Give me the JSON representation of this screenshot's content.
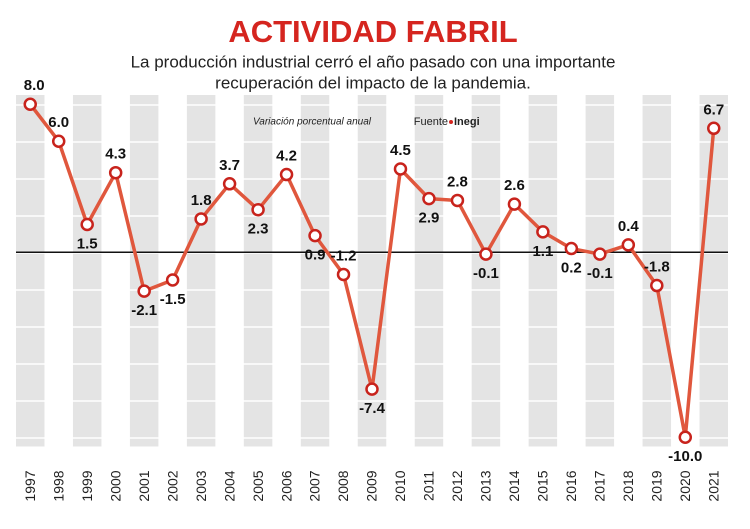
{
  "chart_data": {
    "type": "line",
    "title": "ACTIVIDAD FABRIL",
    "subtitle": [
      "La producción industrial cerró el año pasado con una importante",
      "recuperación del impacto de la pandemia."
    ],
    "y_label": "Variación porcentual anual",
    "source_label": "Fuente",
    "source": "Inegi",
    "categories": [
      "1997",
      "1998",
      "1999",
      "2000",
      "2001",
      "2002",
      "2003",
      "2004",
      "2005",
      "2006",
      "2007",
      "2008",
      "2009",
      "2010",
      "2011",
      "2012",
      "2013",
      "2014",
      "2015",
      "2016",
      "2017",
      "2018",
      "2019",
      "2020",
      "2021"
    ],
    "values": [
      8.0,
      6.0,
      1.5,
      4.3,
      -2.1,
      -1.5,
      1.8,
      3.7,
      2.3,
      4.2,
      0.9,
      -1.2,
      -7.4,
      4.5,
      2.9,
      2.8,
      -0.1,
      2.6,
      1.1,
      0.2,
      -0.1,
      0.4,
      -1.8,
      -10.0,
      6.7
    ],
    "value_labels": [
      "8.0",
      "6.0",
      "1.5",
      "4.3",
      "-2.1",
      "-1.5",
      "1.8",
      "3.7",
      "2.3",
      "4.2",
      "0.9",
      "-1.2",
      "-7.4",
      "4.5",
      "2.9",
      "2.8",
      "-0.1",
      "2.6",
      "1.1",
      "0.2",
      "-0.1",
      "0.4",
      "-1.8",
      "-10.0",
      "6.7"
    ],
    "color": "#e0573d",
    "ylim": [
      -10.5,
      8.5
    ]
  }
}
